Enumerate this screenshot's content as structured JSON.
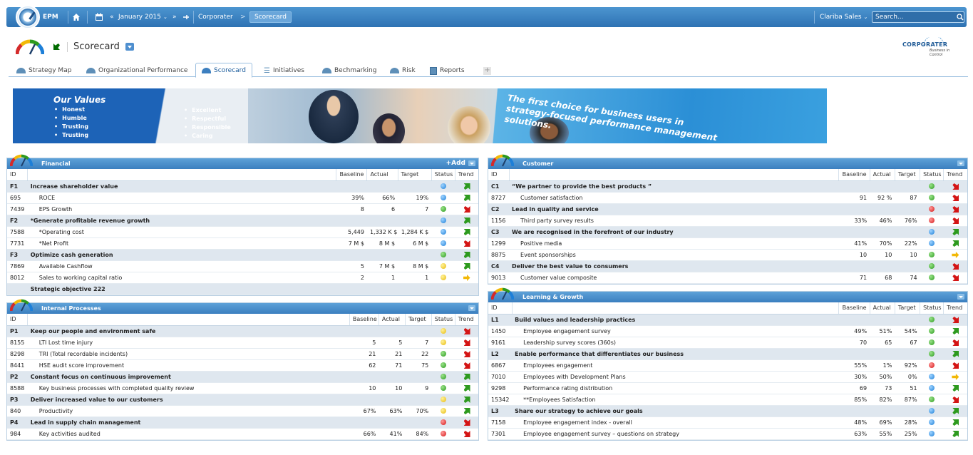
{
  "topbar": {
    "app_name": "EPM",
    "period": "January 2015",
    "breadcrumb": [
      "Corporater",
      "Scorecard"
    ],
    "user": "Clariba Sales",
    "search_placeholder": "Search..."
  },
  "header": {
    "title": "Scorecard",
    "brand": "CORPORATER",
    "brand_tagline": "Business in Control"
  },
  "tabs": [
    {
      "label": "Strategy Map"
    },
    {
      "label": "Organizational Performance"
    },
    {
      "label": "Scorecard",
      "active": true
    },
    {
      "label": "Initiatives"
    },
    {
      "label": "Bechmarking"
    },
    {
      "label": "Risk"
    },
    {
      "label": "Reports"
    }
  ],
  "banner": {
    "values_title": "Our Values",
    "values_left": [
      "Honest",
      "Humble",
      "Trusting",
      "Trusting"
    ],
    "values_right": [
      "Excellent",
      "Respectful",
      "Responsible",
      "Caring"
    ],
    "slogan_lines": [
      "The first choice for business users in",
      "strategy-focused performance management solutions."
    ]
  },
  "columns": {
    "id": "ID",
    "baseline": "Baseline",
    "actual": "Actual",
    "target": "Target",
    "status": "Status",
    "trend": "Trend"
  },
  "panels": {
    "financial": {
      "title": "Financial",
      "add_label": "+Add",
      "rows": [
        {
          "type": "obj",
          "id": "F1",
          "name": "Increase shareholder value",
          "status": "blue",
          "trend": "up"
        },
        {
          "type": "kpi",
          "id": "695",
          "name": "ROCE",
          "baseline": "39%",
          "actual": "66%",
          "target": "19%",
          "status": "blue",
          "trend": "up"
        },
        {
          "type": "kpi",
          "id": "7439",
          "name": "EPS Growth",
          "baseline": "8",
          "actual": "6",
          "target": "7",
          "status": "green",
          "trend": "down"
        },
        {
          "type": "obj",
          "id": "F2",
          "name": "*Generate profitable revenue growth",
          "status": "blue",
          "trend": "up"
        },
        {
          "type": "kpi",
          "id": "7588",
          "name": "*Operating cost",
          "baseline": "5,449",
          "actual": "1,332 K $",
          "target": "1,284 K $",
          "status": "blue",
          "trend": "up"
        },
        {
          "type": "kpi",
          "id": "7731",
          "name": "*Net Profit",
          "baseline": "7 M $",
          "actual": "8 M $",
          "target": "6 M $",
          "status": "blue",
          "trend": "down"
        },
        {
          "type": "obj",
          "id": "F3",
          "name": "Optimize cash generation",
          "status": "green",
          "trend": "up"
        },
        {
          "type": "kpi",
          "id": "7869",
          "name": "Available Cashflow",
          "baseline": "5",
          "actual": "7 M $",
          "target": "8 M $",
          "status": "yellow",
          "trend": "up"
        },
        {
          "type": "kpi",
          "id": "8012",
          "name": "Sales to working capital ratio",
          "baseline": "2",
          "actual": "1",
          "target": "1",
          "status": "yellow",
          "trend": "flat"
        },
        {
          "type": "obj",
          "id": "",
          "name": "Strategic objective 222",
          "status": "",
          "trend": ""
        }
      ]
    },
    "internal": {
      "title": "Internal Processes",
      "rows": [
        {
          "type": "obj",
          "id": "P1",
          "name": "Keep our people and environment safe",
          "status": "yellow",
          "trend": "down"
        },
        {
          "type": "kpi",
          "id": "8155",
          "name": "LTI Lost time injury",
          "baseline": "5",
          "actual": "5",
          "target": "7",
          "status": "yellow",
          "trend": "down"
        },
        {
          "type": "kpi",
          "id": "8298",
          "name": "TRI (Total recordable incidents)",
          "baseline": "21",
          "actual": "21",
          "target": "22",
          "status": "green",
          "trend": "down"
        },
        {
          "type": "kpi",
          "id": "8441",
          "name": "HSE audit score improvement",
          "baseline": "62",
          "actual": "71",
          "target": "75",
          "status": "green",
          "trend": "down"
        },
        {
          "type": "obj",
          "id": "P2",
          "name": "Constant focus on continuous improvement",
          "status": "green",
          "trend": "up"
        },
        {
          "type": "kpi",
          "id": "8588",
          "name": "Key business processes with completed quality review",
          "baseline": "10",
          "actual": "10",
          "target": "9",
          "status": "green",
          "trend": "up"
        },
        {
          "type": "obj",
          "id": "P3",
          "name": "Deliver increased value to our customers",
          "status": "yellow",
          "trend": "up"
        },
        {
          "type": "kpi",
          "id": "840",
          "name": "Productivity",
          "baseline": "67%",
          "actual": "63%",
          "target": "70%",
          "status": "yellow",
          "trend": "up"
        },
        {
          "type": "obj",
          "id": "P4",
          "name": "Lead in supply chain management",
          "status": "red",
          "trend": "down"
        },
        {
          "type": "kpi",
          "id": "984",
          "name": "Key activities audited",
          "baseline": "66%",
          "actual": "41%",
          "target": "84%",
          "status": "red",
          "trend": "down"
        }
      ]
    },
    "customer": {
      "title": "Customer",
      "rows": [
        {
          "type": "obj",
          "id": "C1",
          "name": "“We partner to provide the best products ”",
          "status": "green",
          "trend": "down"
        },
        {
          "type": "kpi",
          "id": "8727",
          "name": "Customer satisfaction",
          "baseline": "91",
          "actual": "92 %",
          "target": "87",
          "status": "green",
          "trend": "down"
        },
        {
          "type": "obj",
          "id": "C2",
          "name": "Lead in quality and service",
          "status": "red",
          "trend": "down"
        },
        {
          "type": "kpi",
          "id": "1156",
          "name": "Third party survey results",
          "baseline": "33%",
          "actual": "46%",
          "target": "76%",
          "status": "red",
          "trend": "down"
        },
        {
          "type": "obj",
          "id": "C3",
          "name": "We are recognised in the forefront of our industry",
          "status": "blue",
          "trend": "up"
        },
        {
          "type": "kpi",
          "id": "1299",
          "name": "Positive media",
          "baseline": "41%",
          "actual": "70%",
          "target": "22%",
          "status": "blue",
          "trend": "up"
        },
        {
          "type": "kpi",
          "id": "8875",
          "name": "Event sponsorships",
          "baseline": "10",
          "actual": "10",
          "target": "10",
          "status": "green",
          "trend": "flat"
        },
        {
          "type": "obj",
          "id": "C4",
          "name": "Deliver the best value to consumers",
          "status": "green",
          "trend": "down"
        },
        {
          "type": "kpi",
          "id": "9013",
          "name": "Customer value composite",
          "baseline": "71",
          "actual": "68",
          "target": "74",
          "status": "green",
          "trend": "down"
        }
      ]
    },
    "learning": {
      "title": "Learning & Growth",
      "rows": [
        {
          "type": "obj",
          "id": "L1",
          "name": "Build values and leadership practices",
          "status": "green",
          "trend": "down"
        },
        {
          "type": "kpi",
          "id": "1450",
          "name": "Employee engagement survey",
          "baseline": "49%",
          "actual": "51%",
          "target": "54%",
          "status": "green",
          "trend": "up"
        },
        {
          "type": "kpi",
          "id": "9161",
          "name": "Leadership survey scores (360s)",
          "baseline": "70",
          "actual": "65",
          "target": "67",
          "status": "green",
          "trend": "down"
        },
        {
          "type": "obj",
          "id": "L2",
          "name": "Enable performance that differentiates our business",
          "status": "green",
          "trend": "up"
        },
        {
          "type": "kpi",
          "id": "6867",
          "name": "Employees engagement",
          "baseline": "55%",
          "actual": "1%",
          "target": "92%",
          "status": "red",
          "trend": "down"
        },
        {
          "type": "kpi",
          "id": "7010",
          "name": "Employees with Development Plans",
          "baseline": "30%",
          "actual": "50%",
          "target": "0%",
          "status": "blue",
          "trend": "flat"
        },
        {
          "type": "kpi",
          "id": "9298",
          "name": "Performance rating distribution",
          "baseline": "69",
          "actual": "73",
          "target": "51",
          "status": "blue",
          "trend": "up"
        },
        {
          "type": "kpi",
          "id": "15342",
          "name": "**Employees Satisfaction",
          "baseline": "85%",
          "actual": "82%",
          "target": "87%",
          "status": "green",
          "trend": "down"
        },
        {
          "type": "obj",
          "id": "L3",
          "name": "Share our strategy to achieve our goals",
          "status": "blue",
          "trend": "up"
        },
        {
          "type": "kpi",
          "id": "7158",
          "name": "Employee engagement index - overall",
          "baseline": "48%",
          "actual": "69%",
          "target": "28%",
          "status": "blue",
          "trend": "up"
        },
        {
          "type": "kpi",
          "id": "7301",
          "name": "Employee engagement survey – questions on strategy",
          "baseline": "63%",
          "actual": "55%",
          "target": "25%",
          "status": "blue",
          "trend": "up"
        }
      ]
    }
  }
}
